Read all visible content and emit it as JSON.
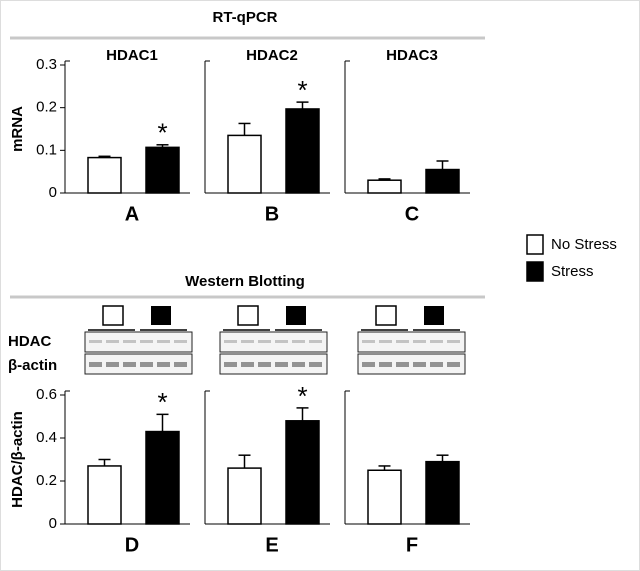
{
  "sections": [
    {
      "title": "RT-qPCR"
    },
    {
      "title": "Western Blotting",
      "blot_labels": [
        "HDAC",
        "β-actin"
      ]
    }
  ],
  "legend": [
    {
      "name": "No Stress",
      "color": "#ffffff"
    },
    {
      "name": "Stress",
      "color": "#000000"
    }
  ],
  "chart_data": [
    {
      "type": "bar",
      "title": "HDAC1",
      "xlabel": "A",
      "ylabel": "mRNA",
      "categories": [
        null
      ],
      "ylim": [
        0,
        0.3
      ],
      "yticks": [
        0,
        0.1,
        0.2,
        0.3
      ],
      "series": [
        {
          "color": "#ffffff",
          "values": [
            0.083
          ],
          "errors": [
            0.003
          ]
        },
        {
          "color": "#000000",
          "values": [
            0.107
          ],
          "errors": [
            0.006
          ],
          "annotation": "*"
        }
      ]
    },
    {
      "type": "bar",
      "title": "HDAC2",
      "xlabel": "B",
      "categories": [
        null
      ],
      "ylim": [
        0,
        0.3
      ],
      "series": [
        {
          "color": "#ffffff",
          "values": [
            0.135
          ],
          "errors": [
            0.028
          ]
        },
        {
          "color": "#000000",
          "values": [
            0.197
          ],
          "errors": [
            0.016
          ],
          "annotation": "*"
        }
      ]
    },
    {
      "type": "bar",
      "title": "HDAC3",
      "xlabel": "C",
      "categories": [
        null
      ],
      "ylim": [
        0,
        0.3
      ],
      "series": [
        {
          "color": "#ffffff",
          "values": [
            0.03
          ],
          "errors": [
            0.003
          ]
        },
        {
          "color": "#000000",
          "values": [
            0.055
          ],
          "errors": [
            0.02
          ]
        }
      ]
    },
    {
      "type": "bar",
      "xlabel": "D",
      "ylabel": "HDAC/β-actin",
      "categories": [
        null
      ],
      "ylim": [
        0,
        0.6
      ],
      "yticks": [
        0,
        0.2,
        0.4,
        0.6
      ],
      "series": [
        {
          "color": "#ffffff",
          "values": [
            0.27
          ],
          "errors": [
            0.03
          ]
        },
        {
          "color": "#000000",
          "values": [
            0.43
          ],
          "errors": [
            0.08
          ],
          "annotation": "*"
        }
      ]
    },
    {
      "type": "bar",
      "xlabel": "E",
      "categories": [
        null
      ],
      "ylim": [
        0,
        0.6
      ],
      "series": [
        {
          "color": "#ffffff",
          "values": [
            0.26
          ],
          "errors": [
            0.06
          ]
        },
        {
          "color": "#000000",
          "values": [
            0.48
          ],
          "errors": [
            0.06
          ],
          "annotation": "*"
        }
      ]
    },
    {
      "type": "bar",
      "xlabel": "F",
      "categories": [
        null
      ],
      "ylim": [
        0,
        0.6
      ],
      "series": [
        {
          "color": "#ffffff",
          "values": [
            0.25
          ],
          "errors": [
            0.02
          ]
        },
        {
          "color": "#000000",
          "values": [
            0.29
          ],
          "errors": [
            0.03
          ]
        }
      ]
    }
  ]
}
